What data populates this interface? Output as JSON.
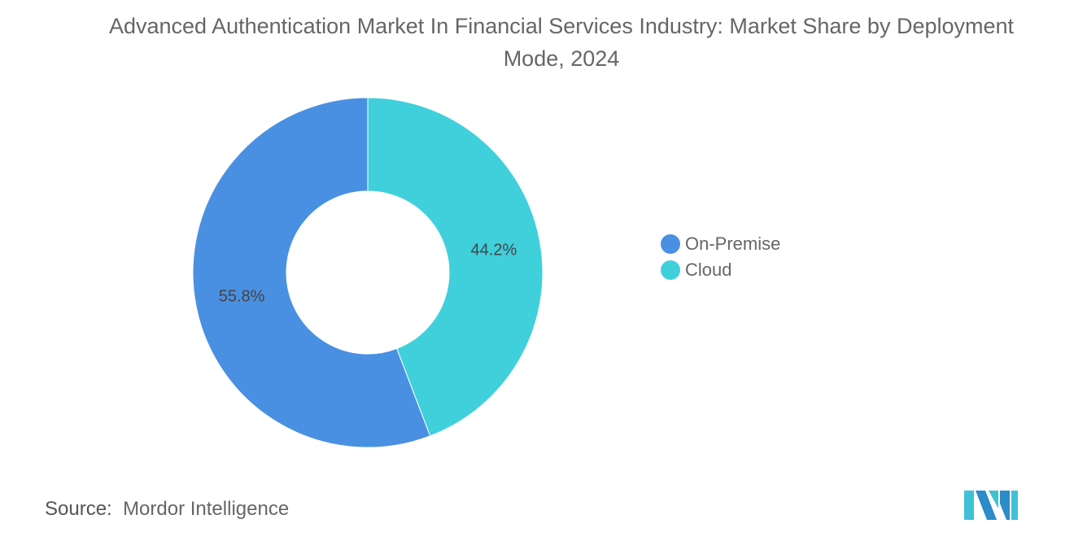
{
  "chart_data": {
    "type": "pie",
    "donut": true,
    "title": "Advanced Authentication Market In Financial Services Industry: Market Share by Deployment Mode, 2024",
    "categories": [
      "On-Premise",
      "Cloud"
    ],
    "values": [
      55.8,
      44.2
    ],
    "data_labels": [
      "55.8%",
      "44.2%"
    ],
    "colors": [
      "#4A90E2",
      "#3FD0DB"
    ],
    "legend_position": "right"
  },
  "source": {
    "label": "Source:",
    "value": "Mordor Intelligence"
  },
  "logo": {
    "text": "Mordor Intelligence",
    "colors": [
      "#3FC1D6",
      "#2C8BC9"
    ]
  }
}
